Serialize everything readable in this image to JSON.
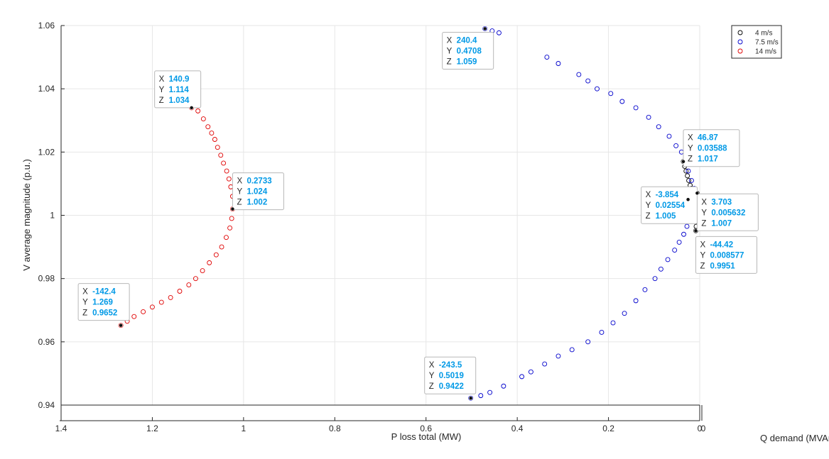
{
  "chart_data": {
    "type": "scatter",
    "title": "",
    "xlabel": "P loss total (MW)",
    "zlabel": "Q demand (MVAr)",
    "ylabel": "V average magnitude (p.u.)",
    "xlim": [
      0,
      1.4
    ],
    "ylim": [
      0.94,
      1.06
    ],
    "x_reversed": true,
    "x_ticks": [
      "1.4",
      "1.2",
      "1",
      "0.8",
      "0.6",
      "0.4",
      "0.2",
      "0"
    ],
    "y_ticks": [
      "0.94",
      "0.96",
      "0.98",
      "1",
      "1.02",
      "1.04",
      "1.06"
    ],
    "z_tick": "0",
    "grid": true,
    "legend_position": "top-right",
    "series": [
      {
        "name": "4 m/s",
        "color": "#000000",
        "marker": "open-circle",
        "points": [
          [
            0.03588,
            1.017
          ],
          [
            0.033,
            1.0155
          ],
          [
            0.03,
            1.014
          ],
          [
            0.027,
            1.0125
          ],
          [
            0.024,
            1.011
          ],
          [
            0.021,
            1.0095
          ],
          [
            0.018,
            1.0085
          ],
          [
            0.014,
            1.0075
          ],
          [
            0.01,
            1.007
          ],
          [
            0.005632,
            1.007
          ],
          [
            0.006,
            1.006
          ],
          [
            0.0058,
            1.004
          ],
          [
            0.006,
            1.002
          ],
          [
            0.0065,
            1.0
          ],
          [
            0.007,
            0.998
          ],
          [
            0.0078,
            0.9965
          ],
          [
            0.008577,
            0.9951
          ]
        ]
      },
      {
        "name": "7.5 m/s",
        "color": "#0000cc",
        "marker": "open-circle",
        "points": [
          [
            0.4708,
            1.059
          ],
          [
            0.455,
            1.0583
          ],
          [
            0.44,
            1.0577
          ],
          [
            0.335,
            1.05
          ],
          [
            0.31,
            1.048
          ],
          [
            0.265,
            1.0445
          ],
          [
            0.245,
            1.0425
          ],
          [
            0.225,
            1.04
          ],
          [
            0.195,
            1.0385
          ],
          [
            0.17,
            1.036
          ],
          [
            0.14,
            1.034
          ],
          [
            0.112,
            1.031
          ],
          [
            0.09,
            1.028
          ],
          [
            0.067,
            1.025
          ],
          [
            0.052,
            1.022
          ],
          [
            0.04,
            1.02
          ],
          [
            0.03,
            1.0175
          ],
          [
            0.025,
            1.014
          ],
          [
            0.018,
            1.011
          ],
          [
            0.012,
            1.0085
          ],
          [
            0.008,
            1.006
          ],
          [
            0.008,
            1.003
          ],
          [
            0.012,
            1.001
          ],
          [
            0.02554,
            1.005
          ],
          [
            0.022,
            0.9985
          ],
          [
            0.028,
            0.9965
          ],
          [
            0.035,
            0.994
          ],
          [
            0.045,
            0.9915
          ],
          [
            0.055,
            0.989
          ],
          [
            0.07,
            0.986
          ],
          [
            0.085,
            0.983
          ],
          [
            0.098,
            0.98
          ],
          [
            0.12,
            0.9765
          ],
          [
            0.14,
            0.973
          ],
          [
            0.165,
            0.969
          ],
          [
            0.19,
            0.966
          ],
          [
            0.215,
            0.963
          ],
          [
            0.245,
            0.96
          ],
          [
            0.28,
            0.9575
          ],
          [
            0.31,
            0.9555
          ],
          [
            0.34,
            0.953
          ],
          [
            0.37,
            0.9505
          ],
          [
            0.39,
            0.949
          ],
          [
            0.43,
            0.946
          ],
          [
            0.46,
            0.944
          ],
          [
            0.48,
            0.943
          ],
          [
            0.5019,
            0.9422
          ]
        ]
      },
      {
        "name": "14 m/s",
        "color": "#e00000",
        "marker": "open-circle",
        "points": [
          [
            1.114,
            1.034
          ],
          [
            1.1,
            1.033
          ],
          [
            1.088,
            1.0305
          ],
          [
            1.078,
            1.028
          ],
          [
            1.07,
            1.026
          ],
          [
            1.063,
            1.024
          ],
          [
            1.057,
            1.0215
          ],
          [
            1.05,
            1.019
          ],
          [
            1.044,
            1.0165
          ],
          [
            1.037,
            1.014
          ],
          [
            1.032,
            1.0115
          ],
          [
            1.028,
            1.009
          ],
          [
            1.024,
            1.006
          ],
          [
            1.024,
            1.002
          ],
          [
            1.026,
            0.999
          ],
          [
            1.03,
            0.996
          ],
          [
            1.038,
            0.993
          ],
          [
            1.048,
            0.99
          ],
          [
            1.06,
            0.9875
          ],
          [
            1.075,
            0.985
          ],
          [
            1.09,
            0.9825
          ],
          [
            1.105,
            0.98
          ],
          [
            1.12,
            0.978
          ],
          [
            1.14,
            0.976
          ],
          [
            1.16,
            0.974
          ],
          [
            1.18,
            0.9725
          ],
          [
            1.2,
            0.971
          ],
          [
            1.22,
            0.9695
          ],
          [
            1.24,
            0.968
          ],
          [
            1.255,
            0.9665
          ],
          [
            1.269,
            0.9652
          ]
        ]
      }
    ],
    "datatips": [
      {
        "x": 1.269,
        "y": 0.9652,
        "labels": {
          "X": "X",
          "Y": "Y",
          "Z": "Z"
        },
        "values": {
          "X": "-142.4",
          "Y": "1.269",
          "Z": "0.9652"
        }
      },
      {
        "x": 1.114,
        "y": 1.034,
        "labels": {
          "X": "X",
          "Y": "Y",
          "Z": "Z"
        },
        "values": {
          "X": "140.9",
          "Y": "1.114",
          "Z": "1.034"
        }
      },
      {
        "x": 1.024,
        "y": 1.002,
        "labels": {
          "X": "X",
          "Y": "Y",
          "Z": "Z"
        },
        "values": {
          "X": "0.2733",
          "Y": "1.024",
          "Z": "1.002"
        }
      },
      {
        "x": 0.4708,
        "y": 1.059,
        "labels": {
          "X": "X",
          "Y": "Y",
          "Z": "Z"
        },
        "values": {
          "X": "240.4",
          "Y": "0.4708",
          "Z": "1.059"
        }
      },
      {
        "x": 0.5019,
        "y": 0.9422,
        "labels": {
          "X": "X",
          "Y": "Y",
          "Z": "Z"
        },
        "values": {
          "X": "-243.5",
          "Y": "0.5019",
          "Z": "0.9422"
        }
      },
      {
        "x": 0.03588,
        "y": 1.017,
        "labels": {
          "X": "X",
          "Y": "Y",
          "Z": "Z"
        },
        "values": {
          "X": "46.87",
          "Y": "0.03588",
          "Z": "1.017"
        }
      },
      {
        "x": 0.02554,
        "y": 1.005,
        "labels": {
          "X": "X",
          "Y": "Y",
          "Z": "Z"
        },
        "values": {
          "X": "-3.854",
          "Y": "0.02554",
          "Z": "1.005"
        }
      },
      {
        "x": 0.005632,
        "y": 1.007,
        "labels": {
          "X": "X",
          "Y": "Y",
          "Z": "Z"
        },
        "values": {
          "X": "3.703",
          "Y": "0.005632",
          "Z": "1.007"
        }
      },
      {
        "x": 0.008577,
        "y": 0.9951,
        "labels": {
          "X": "X",
          "Y": "Y",
          "Z": "Z"
        },
        "values": {
          "X": "-44.42",
          "Y": "0.008577",
          "Z": "0.9951"
        }
      }
    ]
  }
}
